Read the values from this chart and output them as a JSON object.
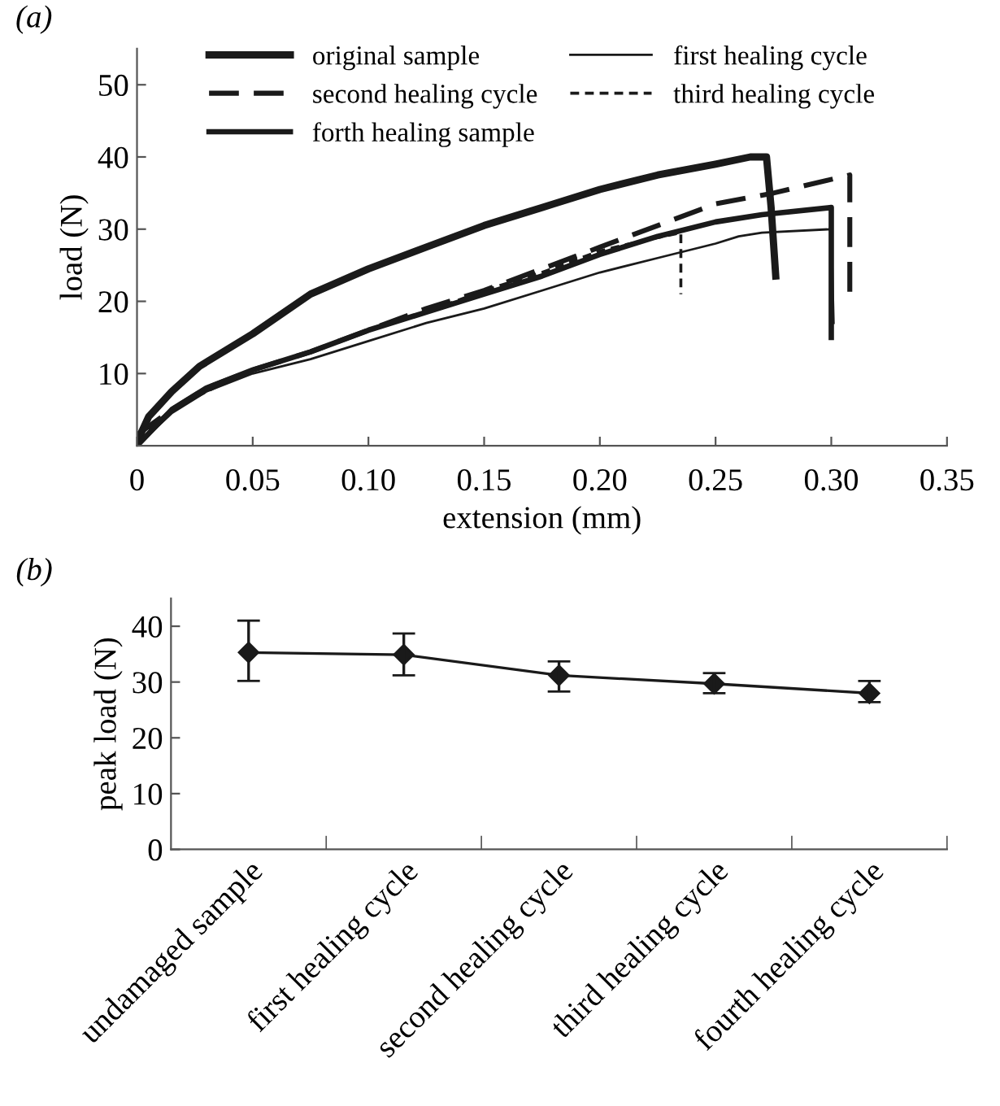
{
  "chart_data": [
    {
      "type": "line",
      "title": "(a)",
      "xlabel": "extension (mm)",
      "ylabel": "load (N)",
      "xlim": [
        0,
        0.35
      ],
      "ylim": [
        0,
        55
      ],
      "xticks": [
        0,
        0.05,
        {
          "value": 0.1,
          "label": "0.10"
        },
        0.15,
        {
          "value": 0.2,
          "label": "0.20"
        },
        0.25,
        {
          "value": 0.3,
          "label": "0.30"
        },
        0.35
      ],
      "yticks": [
        10,
        20,
        30,
        40,
        50
      ],
      "legend": "top",
      "grid": false,
      "marker": "none",
      "series": [
        {
          "name": "original sample",
          "color": "#1a1a1a",
          "line_style": "solid",
          "x": [
            0,
            0.005,
            0.015,
            0.027,
            0.05,
            0.075,
            0.1,
            0.125,
            0.15,
            0.175,
            0.2,
            0.225,
            0.25,
            0.265,
            0.272,
            0.274,
            0.276
          ],
          "values": [
            0.5,
            4,
            7.5,
            11,
            15.5,
            21,
            24.5,
            27.5,
            30.5,
            33,
            35.5,
            37.5,
            39,
            40,
            40,
            33,
            23.5
          ]
        },
        {
          "name": "first healing cycle",
          "color": "#1a1a1a",
          "line_style": "solid",
          "x": [
            0,
            0.015,
            0.03,
            0.05,
            0.075,
            0.1,
            0.125,
            0.15,
            0.175,
            0.2,
            0.225,
            0.25,
            0.26,
            0.27,
            0.3,
            0.301
          ],
          "values": [
            0,
            4.5,
            7.5,
            10,
            12,
            14.5,
            17,
            19,
            21.5,
            24,
            26,
            28,
            29,
            29.5,
            30,
            17
          ]
        },
        {
          "name": "second healing cycle",
          "color": "#1a1a1a",
          "line_style": "dashed",
          "x": [
            0,
            0.015,
            0.03,
            0.05,
            0.075,
            0.1,
            0.125,
            0.15,
            0.175,
            0.2,
            0.225,
            0.25,
            0.275,
            0.308,
            0.308
          ],
          "values": [
            1.5,
            5,
            8,
            10.5,
            13,
            16,
            19,
            21.5,
            24.5,
            27.5,
            30.5,
            33.5,
            35,
            37.5,
            21
          ]
        },
        {
          "name": "third healing cycle",
          "color": "#1a1a1a",
          "line_style": "dashed",
          "x": [
            0,
            0.015,
            0.03,
            0.05,
            0.075,
            0.1,
            0.125,
            0.15,
            0.175,
            0.2,
            0.22,
            0.235,
            0.235
          ],
          "values": [
            1,
            5,
            7.5,
            10.5,
            13,
            16,
            18.5,
            21.5,
            24,
            27,
            28.5,
            29.5,
            21
          ]
        },
        {
          "name": "forth healing sample",
          "color": "#1a1a1a",
          "line_style": "solid",
          "x": [
            0,
            0.015,
            0.03,
            0.05,
            0.075,
            0.1,
            0.125,
            0.15,
            0.175,
            0.2,
            0.225,
            0.25,
            0.27,
            0.3,
            0.3
          ],
          "values": [
            0,
            5,
            8,
            10.5,
            13,
            16,
            18.5,
            21,
            23.5,
            26.5,
            29,
            31,
            32,
            33,
            15
          ]
        }
      ]
    },
    {
      "type": "line",
      "title": "(b)",
      "ylabel": "peak load (N)",
      "ylim": [
        0,
        45
      ],
      "yticks": [
        0,
        10,
        20,
        30,
        40
      ],
      "grid": false,
      "marker": "diamond",
      "legend": false,
      "categories": [
        "undamaged sample",
        "first healing cycle",
        "second healing cycle",
        "third healing cycle",
        "fourth healing cycle"
      ],
      "series": [
        {
          "color": "#1a1a1a",
          "values": [
            35.3,
            34.9,
            31.2,
            29.7,
            28.0
          ],
          "errors": [
            [
              30.2,
              41.0
            ],
            [
              31.2,
              38.7
            ],
            [
              28.3,
              33.7
            ],
            [
              28.0,
              31.6
            ],
            [
              26.4,
              30.2
            ]
          ]
        }
      ]
    }
  ]
}
